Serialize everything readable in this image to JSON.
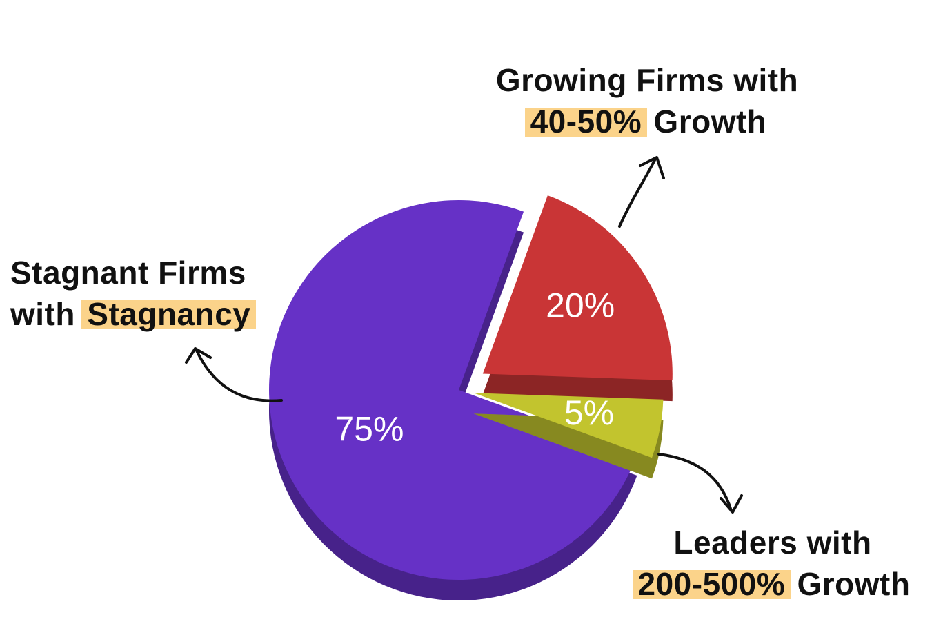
{
  "chart_data": {
    "type": "pie",
    "categories": [
      "Stagnant Firms with Stagnancy",
      "Growing Firms with 40-50% Growth",
      "Leaders with 200-500% Growth"
    ],
    "values": [
      75,
      20,
      5
    ],
    "value_labels": [
      "75%",
      "20%",
      "5%"
    ],
    "colors": [
      "#6631c6",
      "#c93536",
      "#c2c42e"
    ]
  }
}
